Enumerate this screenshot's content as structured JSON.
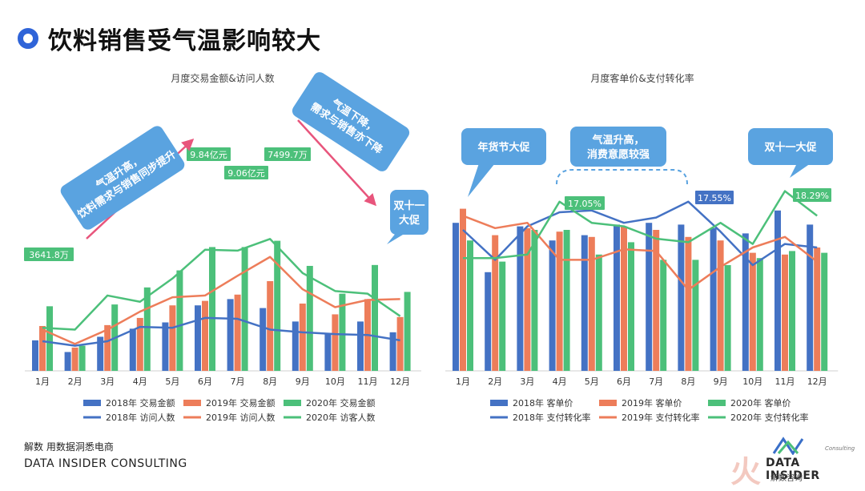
{
  "page": {
    "title": "饮料销售受气温影响较大",
    "footer_cn": "解数 用数据洞悉电商",
    "footer_en": "DATA INSIDER CONSULTING",
    "logo_text": "DATA INSIDER",
    "logo_sub": "解数咨询",
    "logo_small": "Consulting",
    "logo_watermark": "火"
  },
  "colors": {
    "blue": "#4472c4",
    "orange": "#ed7d5a",
    "green": "#4cc07a",
    "callout": "#5aa3e0",
    "arrow": "#e8557c",
    "label_green": "#4cc07a",
    "label_blue": "#4472c4"
  },
  "chart_data": [
    {
      "type": "bar",
      "title": "月度交易金额&访问人数",
      "categories": [
        "1月",
        "2月",
        "3月",
        "4月",
        "5月",
        "6月",
        "7月",
        "8月",
        "9月",
        "10月",
        "11月",
        "12月"
      ],
      "series": [
        {
          "name": "2018年 交易金额",
          "kind": "bar",
          "values": [
            34,
            21,
            38,
            47,
            54,
            73,
            80,
            70,
            55,
            41,
            55,
            43
          ]
        },
        {
          "name": "2019年 交易金额",
          "kind": "bar",
          "values": [
            50,
            26,
            51,
            59,
            73,
            78,
            85,
            100,
            75,
            63,
            80,
            60
          ]
        },
        {
          "name": "2020年 交易金额",
          "kind": "bar",
          "values": [
            72,
            28,
            74,
            93,
            112,
            138,
            138,
            145,
            117,
            86,
            118,
            88
          ]
        },
        {
          "name": "2018年 访问人数",
          "kind": "line",
          "values": [
            33,
            28,
            33,
            49,
            48,
            59,
            58,
            46,
            43,
            41,
            40,
            34
          ]
        },
        {
          "name": "2019年 访问人数",
          "kind": "line",
          "values": [
            46,
            30,
            46,
            66,
            82,
            84,
            106,
            127,
            91,
            71,
            79,
            80
          ]
        },
        {
          "name": "2020年 访客人数",
          "kind": "line",
          "values": [
            48,
            46,
            84,
            77,
            103,
            135,
            134,
            147,
            109,
            89,
            86,
            61
          ]
        }
      ],
      "labels": [
        "3641.8万",
        "9.84亿元",
        "9.06亿元",
        "7499.7万"
      ],
      "annotations": [
        "气温升高，饮料需求与销售同步提升",
        "气温下降，需求与销售亦下降",
        "双十一大促"
      ]
    },
    {
      "type": "bar",
      "title": "月度客单价&支付转化率",
      "categories": [
        "1月",
        "2月",
        "3月",
        "4月",
        "5月",
        "6月",
        "7月",
        "8月",
        "9月",
        "10月",
        "11月",
        "12月"
      ],
      "series": [
        {
          "name": "2018年 客单价",
          "kind": "bar",
          "values": [
            84,
            56,
            82,
            74,
            77,
            83,
            84,
            83,
            81,
            78,
            91,
            83
          ]
        },
        {
          "name": "2019年 客单价",
          "kind": "bar",
          "values": [
            92,
            77,
            81,
            79,
            76,
            82,
            80,
            76,
            74,
            67,
            66,
            70
          ]
        },
        {
          "name": "2020年 客单价",
          "kind": "bar",
          "values": [
            74,
            62,
            80,
            80,
            66,
            73,
            63,
            63,
            60,
            64,
            68,
            67
          ]
        },
        {
          "name": "2018年 支付转化率",
          "kind": "line",
          "values": [
            80,
            63,
            82,
            90,
            91,
            84,
            87,
            96,
            79,
            60,
            72,
            70
          ]
        },
        {
          "name": "2019年 支付转化率",
          "kind": "line",
          "values": [
            88,
            81,
            84,
            63,
            63,
            69,
            68,
            46,
            59,
            70,
            76,
            62
          ]
        },
        {
          "name": "2020年 支付转化率",
          "kind": "line",
          "values": [
            64,
            64,
            66,
            96,
            84,
            82,
            75,
            73,
            84,
            72,
            102,
            88
          ]
        }
      ],
      "labels": [
        "17.05%",
        "17.55%",
        "18.29%"
      ],
      "annotations": [
        "年货节大促",
        "气温升高，消费意愿较强",
        "双十一大促"
      ]
    }
  ]
}
